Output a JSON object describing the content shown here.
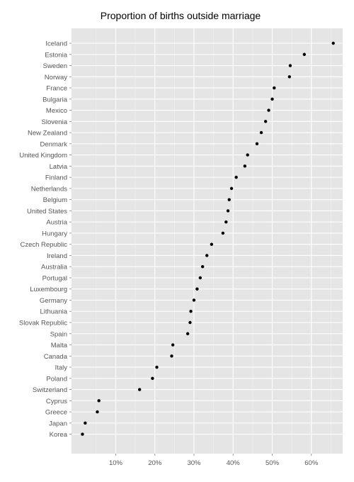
{
  "chart_data": {
    "type": "scatter",
    "title": "Proportion of births outside marriage",
    "xlabel": "",
    "ylabel": "",
    "categories": [
      "Iceland",
      "Estonia",
      "Sweden",
      "Norway",
      "France",
      "Bulgaria",
      "Mexico",
      "Slovenia",
      "New Zealand",
      "Denmark",
      "United Kingdom",
      "Latvia",
      "Finland",
      "Netherlands",
      "Belgium",
      "United States",
      "Austria",
      "Hungary",
      "Czech Republic",
      "Ireland",
      "Australia",
      "Portugal",
      "Luxembourg",
      "Germany",
      "Lithuania",
      "Slovak Republic",
      "Spain",
      "Malta",
      "Canada",
      "Italy",
      "Poland",
      "Switzerland",
      "Cyprus",
      "Greece",
      "Japan",
      "Korea"
    ],
    "values": [
      0.656,
      0.582,
      0.546,
      0.544,
      0.505,
      0.5,
      0.491,
      0.483,
      0.472,
      0.461,
      0.437,
      0.43,
      0.408,
      0.396,
      0.39,
      0.387,
      0.382,
      0.374,
      0.345,
      0.333,
      0.322,
      0.316,
      0.308,
      0.3,
      0.292,
      0.29,
      0.284,
      0.246,
      0.243,
      0.205,
      0.194,
      0.161,
      0.057,
      0.053,
      0.022,
      0.015
    ],
    "xlim": [
      -0.013,
      0.68
    ],
    "xticks": [
      0.1,
      0.2,
      0.3,
      0.4,
      0.5,
      0.6
    ],
    "xtick_labels": [
      "10%",
      "20%",
      "30%",
      "40%",
      "50%",
      "60%"
    ],
    "grid": true,
    "legend": "none",
    "colors": {
      "panel": "#e5e5e5",
      "grid_major": "#ffffff",
      "grid_minor": "#f2f2f2",
      "point": "#000000",
      "tick_label": "#555555"
    }
  }
}
